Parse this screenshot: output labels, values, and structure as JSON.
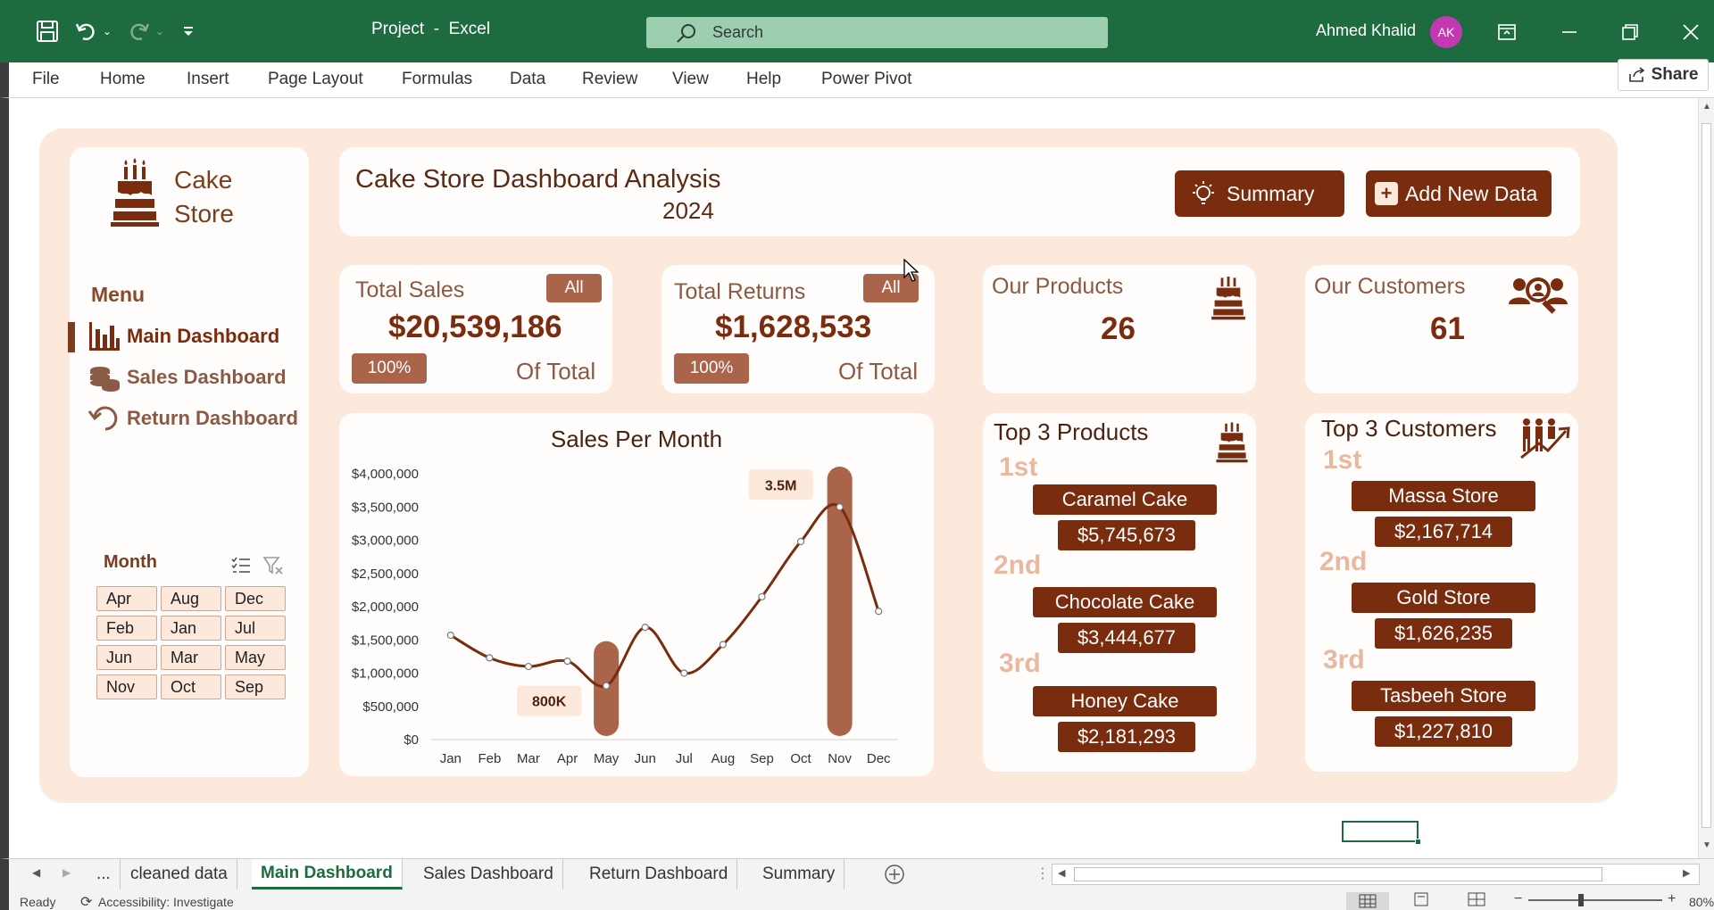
{
  "titlebar": {
    "doc_title": "Project  -  Excel",
    "search_placeholder": "Search",
    "user_name": "Ahmed Khalid",
    "avatar_initials": "AK"
  },
  "menu": {
    "items": [
      "File",
      "Home",
      "Insert",
      "Page Layout",
      "Formulas",
      "Data",
      "Review",
      "View",
      "Help",
      "Power Pivot"
    ],
    "share_label": "Share"
  },
  "brand": {
    "line1": "Cake",
    "line2": "Store"
  },
  "sidebar": {
    "menu_label": "Menu",
    "nav": [
      {
        "label": "Main Dashboard",
        "color": "#7a2c0e"
      },
      {
        "label": "Sales Dashboard",
        "color": "#8a5a44"
      },
      {
        "label": "Return Dashboard",
        "color": "#8a5a44"
      }
    ]
  },
  "slicer": {
    "title": "Month",
    "items": [
      "Apr",
      "Aug",
      "Dec",
      "Feb",
      "Jan",
      "Jul",
      "Jun",
      "Mar",
      "May",
      "Nov",
      "Oct",
      "Sep"
    ]
  },
  "header": {
    "title": "Cake Store Dashboard Analysis",
    "year": "2024",
    "summary_button": "Summary",
    "add_button": "Add New Data",
    "add_button_icon": "+"
  },
  "kpis": {
    "total_sales": {
      "title": "Total Sales",
      "filter": "All",
      "value": "$20,539,186",
      "pct": "100%",
      "of_total": "Of Total"
    },
    "total_returns": {
      "title": "Total Returns",
      "filter": "All",
      "value": "$1,628,533",
      "pct": "100%",
      "of_total": "Of Total"
    },
    "products": {
      "title": "Our Products",
      "value": "26"
    },
    "customers": {
      "title": "Our Customers",
      "value": "61"
    }
  },
  "top_products": {
    "title": "Top 3 Products",
    "ranks": [
      "1st",
      "2nd",
      "3rd"
    ],
    "items": [
      {
        "name": "Caramel Cake",
        "value": "$5,745,673"
      },
      {
        "name": "Chocolate Cake",
        "value": "$3,444,677"
      },
      {
        "name": "Honey Cake",
        "value": "$2,181,293"
      }
    ]
  },
  "top_customers": {
    "title": "Top 3 Customers",
    "ranks": [
      "1st",
      "2nd",
      "3rd"
    ],
    "items": [
      {
        "name": "Massa Store",
        "value": "$2,167,714"
      },
      {
        "name": "Gold Store",
        "value": "$1,626,235"
      },
      {
        "name": "Tasbeeh Store",
        "value": "$1,227,810"
      }
    ]
  },
  "chart_data": {
    "type": "line",
    "title": "Sales Per Month",
    "categories": [
      "Jan",
      "Feb",
      "Mar",
      "Apr",
      "May",
      "Jun",
      "Jul",
      "Aug",
      "Sep",
      "Oct",
      "Nov",
      "Dec"
    ],
    "series": [
      {
        "values": [
          1570000,
          1230000,
          1100000,
          1180000,
          810000,
          1690000,
          1000000,
          1430000,
          2150000,
          2980000,
          3500000,
          1930000
        ]
      }
    ],
    "ylim": [
      0,
      4000000
    ],
    "yticks": [
      "$0",
      "$500,000",
      "$1,000,000",
      "$1,500,000",
      "$2,000,000",
      "$2,500,000",
      "$3,000,000",
      "$3,500,000",
      "$4,000,000"
    ],
    "highlights": [
      {
        "category": "May",
        "label": "800K"
      },
      {
        "category": "Nov",
        "label": "3.5M"
      }
    ],
    "line_color": "#7a2c0e",
    "highlight_color": "#a9644a"
  },
  "sheet_tabs": {
    "more": "...",
    "tabs": [
      "cleaned data",
      "Main Dashboard",
      "Sales Dashboard",
      "Return Dashboard",
      "Summary"
    ],
    "active": "Main Dashboard"
  },
  "status": {
    "ready": "Ready",
    "accessibility": "Accessibility: Investigate",
    "zoom": "80%"
  },
  "colors": {
    "excel_green": "#1d6b3f",
    "accent_brown": "#7a2c0e",
    "dashboard_bg": "#fde8dc"
  }
}
